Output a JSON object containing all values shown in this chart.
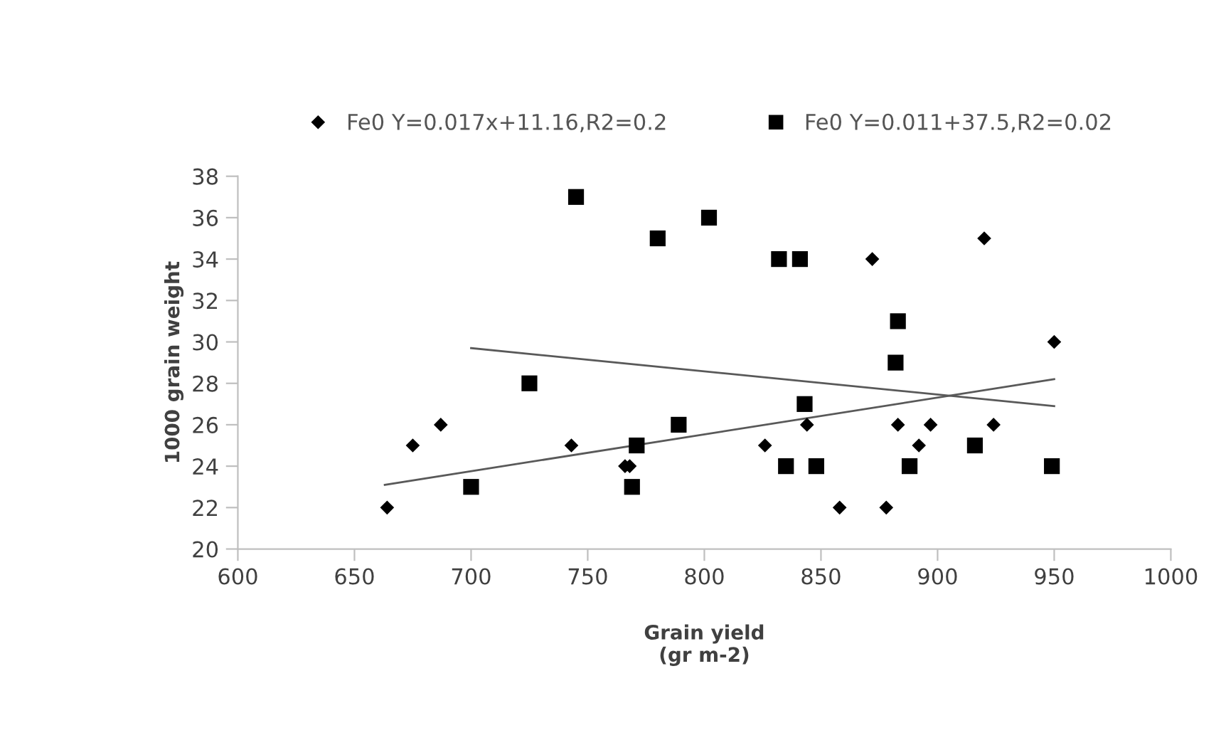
{
  "chart_data": {
    "type": "scatter",
    "xlabel": "Grain yield\n(gr m-2)",
    "ylabel": "1000 grain weight",
    "xlim": [
      600,
      1000
    ],
    "xticks": [
      600,
      650,
      700,
      750,
      800,
      850,
      900,
      950,
      1000
    ],
    "ylim": [
      20,
      38
    ],
    "yticks": [
      20,
      22,
      24,
      26,
      28,
      30,
      32,
      34,
      36,
      38
    ],
    "grid": false,
    "legend": "top",
    "series": [
      {
        "name": "Fe0 Y=0.017x+11.16,R2=0.2",
        "color": "#000000",
        "marker": "diamond",
        "x": [
          664,
          675,
          687,
          743,
          766,
          768,
          826,
          844,
          858,
          872,
          878,
          883,
          892,
          897,
          920,
          924,
          950
        ],
        "values": [
          22,
          25,
          26,
          25,
          24,
          24,
          25,
          26,
          22,
          34,
          22,
          26,
          25,
          26,
          35,
          26,
          30
        ]
      },
      {
        "name": "Fe0 Y=0.011+37.5,R2=0.02",
        "color": "#000000",
        "marker": "square",
        "x": [
          700,
          725,
          745,
          769,
          771,
          780,
          789,
          802,
          832,
          835,
          841,
          843,
          848,
          882,
          883,
          888,
          916,
          949
        ],
        "values": [
          23,
          28,
          37,
          23,
          25,
          35,
          26,
          36,
          34,
          24,
          34,
          27,
          24,
          29,
          31,
          24,
          25,
          24
        ]
      },
      {
        "type": "line",
        "color": "#595959",
        "x": [
          663,
          950
        ],
        "values": [
          23.1,
          28.2
        ]
      },
      {
        "type": "line",
        "color": "#595959",
        "x": [
          700,
          950
        ],
        "values": [
          29.7,
          26.9
        ]
      }
    ]
  }
}
